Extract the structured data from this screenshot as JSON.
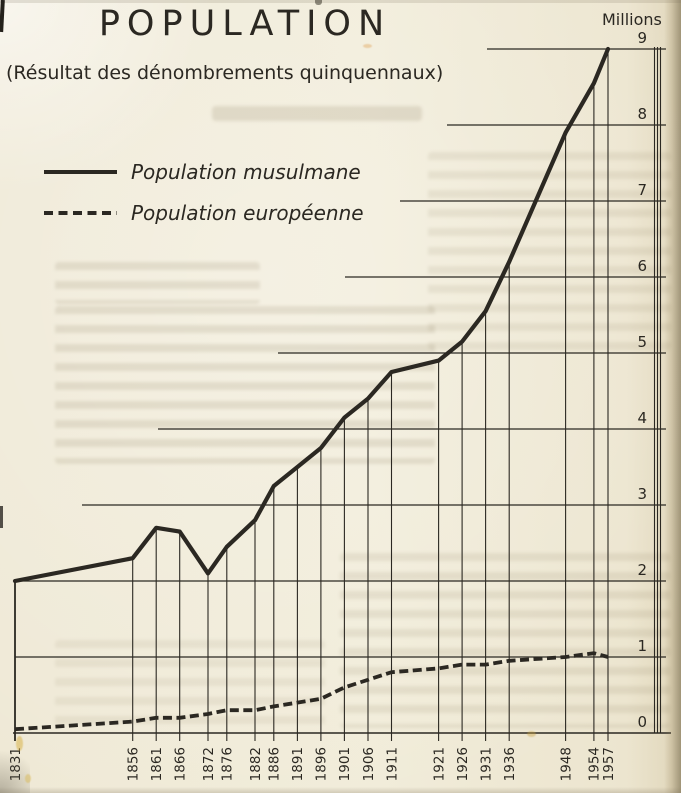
{
  "title": "POPULATION",
  "subtitle": "(Résultat des dénombrements quinquennaux)",
  "unit_label": "Millions",
  "legend": [
    {
      "label": "Population musulmane",
      "style": "solid"
    },
    {
      "label": "Population européenne",
      "style": "dashed"
    }
  ],
  "colors": {
    "ink": "#2b2822",
    "paper": "#f0ead7"
  },
  "chart_data": {
    "type": "line",
    "title": "POPULATION",
    "subtitle": "(Résultat des dénombrements quinquennaux)",
    "ylabel": "Millions",
    "ylim": [
      0,
      9
    ],
    "yticks": [
      0,
      1,
      2,
      3,
      4,
      5,
      6,
      7,
      8,
      9
    ],
    "x": [
      1831,
      1856,
      1861,
      1866,
      1872,
      1876,
      1882,
      1886,
      1891,
      1896,
      1901,
      1906,
      1911,
      1921,
      1926,
      1931,
      1936,
      1948,
      1954,
      1957
    ],
    "series": [
      {
        "name": "Population musulmane",
        "line_style": "solid",
        "values": [
          2.0,
          2.3,
          2.7,
          2.65,
          2.1,
          2.45,
          2.8,
          3.25,
          3.5,
          3.75,
          4.15,
          4.4,
          4.75,
          4.9,
          5.15,
          5.55,
          6.2,
          7.9,
          8.55,
          9.0
        ]
      },
      {
        "name": "Population européenne",
        "line_style": "dashed",
        "values": [
          0.05,
          0.15,
          0.2,
          0.2,
          0.25,
          0.3,
          0.3,
          0.35,
          0.4,
          0.45,
          0.6,
          0.7,
          0.8,
          0.85,
          0.9,
          0.9,
          0.95,
          1.0,
          1.05,
          1.0
        ]
      }
    ],
    "legend_position": "upper-left",
    "axis_side": "right",
    "grid": "horizontal million gridlines with staggered left ends; vertical drop line from the solid curve to the baseline at each census year"
  }
}
